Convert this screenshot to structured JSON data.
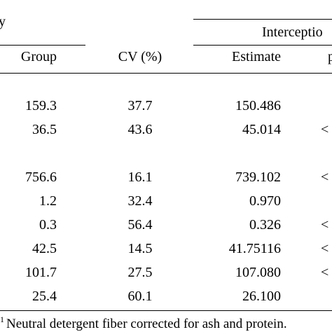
{
  "table": {
    "header_top_left": "y",
    "header_group_right": "Interceptio",
    "columns": {
      "group": "Group",
      "cv": "CV (%)",
      "estimate": "Estimate",
      "p": "p"
    },
    "rows": [
      {
        "group": "159.3",
        "cv": "37.7",
        "estimate": "150.486",
        "p": ""
      },
      {
        "group": "36.5",
        "cv": "43.6",
        "estimate": "45.014",
        "p": "<"
      },
      {
        "group": "756.6",
        "cv": "16.1",
        "estimate": "739.102",
        "p": "<"
      },
      {
        "group": "1.2",
        "cv": "32.4",
        "estimate": "0.970",
        "p": ""
      },
      {
        "group": "0.3",
        "cv": "56.4",
        "estimate": "0.326",
        "p": "<"
      },
      {
        "group": "42.5",
        "cv": "14.5",
        "estimate": "41.75116",
        "p": "<"
      },
      {
        "group": "101.7",
        "cv": "27.5",
        "estimate": "107.080",
        "p": "<"
      },
      {
        "group": "25.4",
        "cv": "60.1",
        "estimate": "26.100",
        "p": ""
      }
    ]
  },
  "footnote": {
    "marker": "1",
    "text": "Neutral detergent fiber corrected for ash and protein."
  }
}
